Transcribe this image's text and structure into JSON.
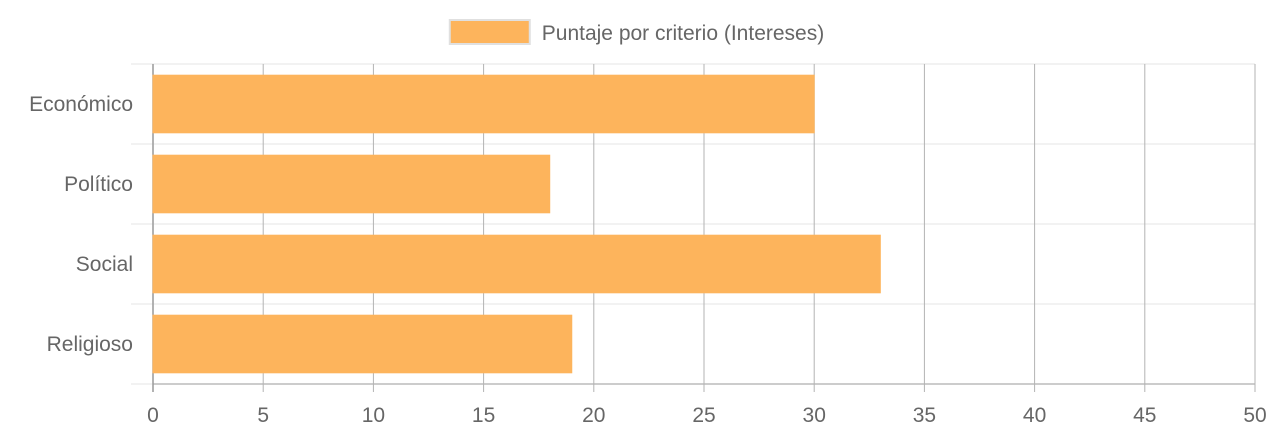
{
  "chart_data": {
    "type": "bar",
    "orientation": "horizontal",
    "categories": [
      "Económico",
      "Político",
      "Social",
      "Religioso"
    ],
    "series": [
      {
        "name": "Puntaje por criterio (Intereses)",
        "values": [
          30,
          18,
          33,
          19
        ],
        "color": "#fdb45c"
      }
    ],
    "xlim": [
      0,
      50
    ],
    "x_ticks": [
      0,
      5,
      10,
      15,
      20,
      25,
      30,
      35,
      40,
      45,
      50
    ],
    "grid": true,
    "legend_position": "top-center",
    "title": "",
    "xlabel": "",
    "ylabel": ""
  },
  "colors": {
    "bar_fill": "#fdb45c",
    "bar_stroke": "#fdb45c",
    "vertical_grid": "#b3b3b3",
    "horizontal_grid": "#e6e6e6",
    "axis": "#999999",
    "text": "#666666"
  }
}
